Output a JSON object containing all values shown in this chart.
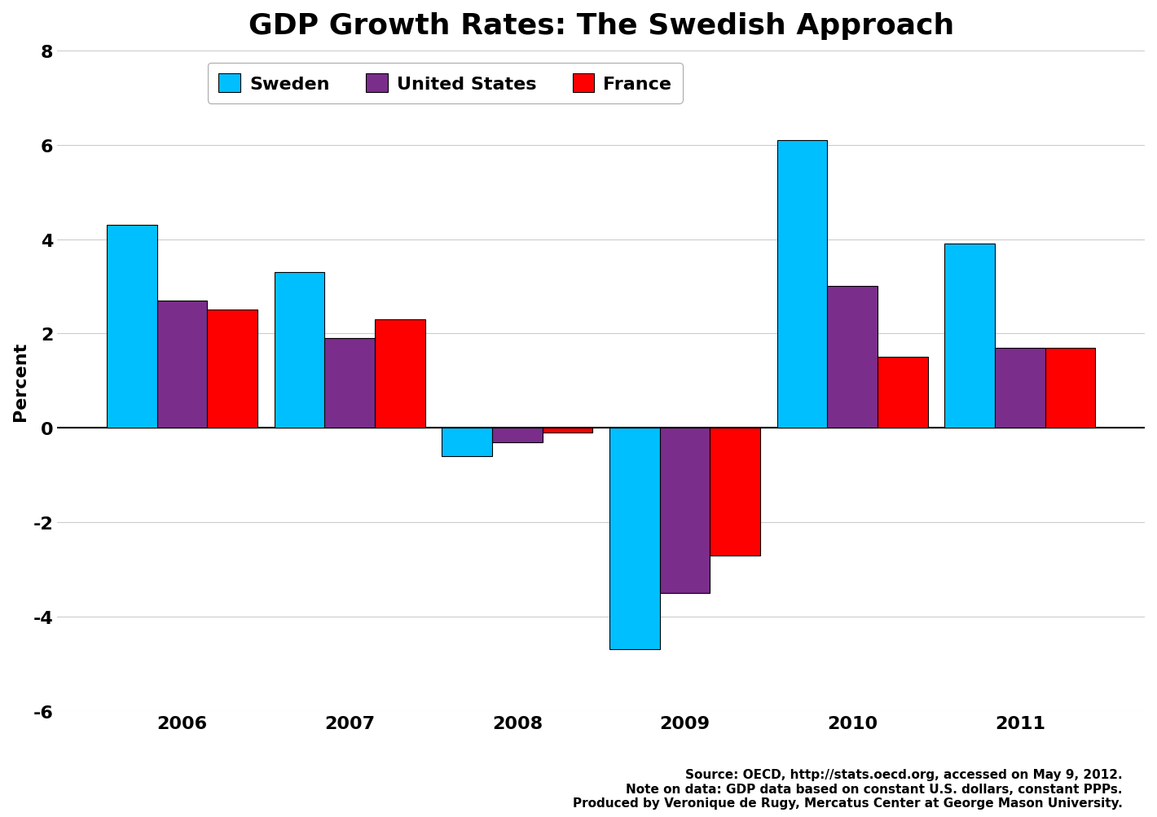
{
  "title": "GDP Growth Rates: The Swedish Approach",
  "ylabel": "Percent",
  "years": [
    2006,
    2007,
    2008,
    2009,
    2010,
    2011
  ],
  "sweden": [
    4.3,
    3.3,
    -0.6,
    -4.7,
    6.1,
    3.9
  ],
  "united_states": [
    2.7,
    1.9,
    -0.3,
    -3.5,
    3.0,
    1.7
  ],
  "france": [
    2.5,
    2.3,
    -0.1,
    -2.7,
    1.5,
    1.7
  ],
  "sweden_color": "#00BFFF",
  "united_states_color": "#7B2D8B",
  "france_color": "#FF0000",
  "ylim": [
    -6,
    8
  ],
  "yticks": [
    -6,
    -4,
    -2,
    0,
    2,
    4,
    6,
    8
  ],
  "bar_width": 0.3,
  "background_color": "#FFFFFF",
  "grid_color": "#CCCCCC",
  "footnote_line1": "Source: OECD, http://stats.oecd.org, accessed on May 9, 2012.",
  "footnote_line2": "Note on data: GDP data based on constant U.S. dollars, constant PPPs.",
  "footnote_line3": "Produced by Veronique de Rugy, Mercatus Center at George Mason University.",
  "legend_labels": [
    "Sweden",
    "United States",
    "France"
  ],
  "title_fontsize": 26,
  "label_fontsize": 16,
  "tick_fontsize": 16,
  "legend_fontsize": 16,
  "footnote_fontsize": 11
}
